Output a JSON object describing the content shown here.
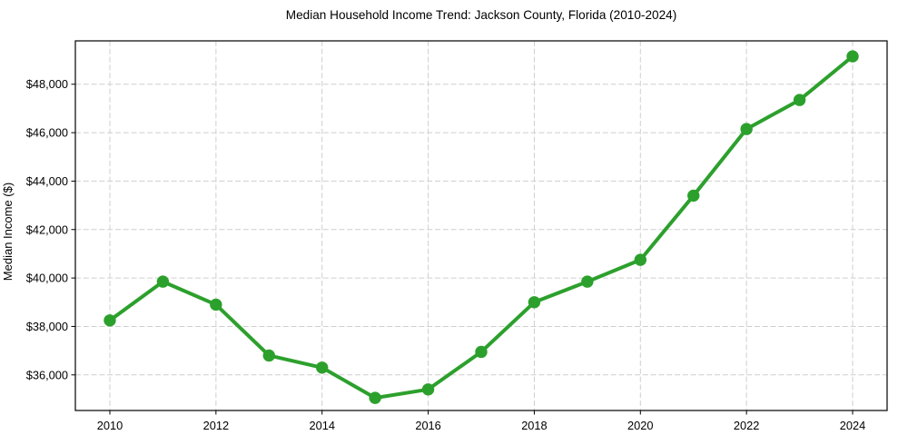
{
  "chart_data": {
    "type": "line",
    "title": "Median Household Income Trend: Jackson County, Florida (2010-2024)",
    "xlabel": "",
    "ylabel": "Median Income ($)",
    "x": [
      2010,
      2011,
      2012,
      2013,
      2014,
      2015,
      2016,
      2017,
      2018,
      2019,
      2020,
      2021,
      2022,
      2023,
      2024
    ],
    "values": [
      38250,
      39850,
      38900,
      36800,
      36300,
      35050,
      35400,
      36950,
      39000,
      39850,
      40750,
      43400,
      46150,
      47350,
      49150
    ],
    "xlim": [
      2009.35,
      2024.65
    ],
    "ylim": [
      34530,
      49790
    ],
    "x_ticks": [
      2010,
      2012,
      2014,
      2016,
      2018,
      2020,
      2022,
      2024
    ],
    "x_tick_labels": [
      "2010",
      "2012",
      "2014",
      "2016",
      "2018",
      "2020",
      "2022",
      "2024"
    ],
    "y_ticks": [
      36000,
      38000,
      40000,
      42000,
      44000,
      46000,
      48000
    ],
    "y_tick_labels": [
      "$36,000",
      "$38,000",
      "$40,000",
      "$42,000",
      "$44,000",
      "$46,000",
      "$48,000"
    ],
    "grid": true,
    "legend": "none",
    "line_color": "#2ca02c",
    "marker_color": "#2ca02c",
    "grid_color": "#cfcfcf",
    "axis_color": "#000000",
    "text_color": "#000000",
    "background_color": "#ffffff"
  }
}
